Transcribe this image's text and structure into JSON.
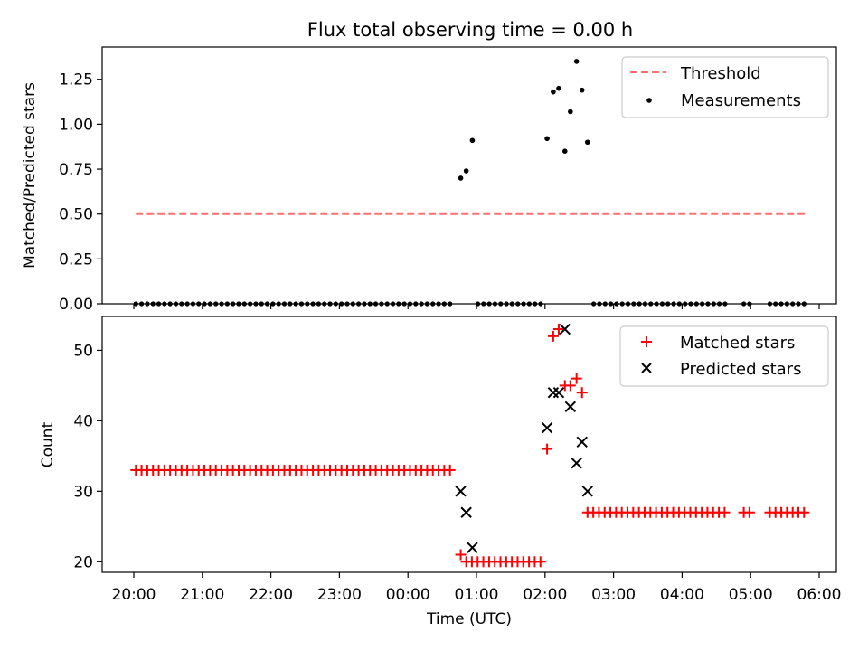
{
  "figure_title": "Flux total observing time = 0.00 h",
  "colors": {
    "threshold": "#ff7070",
    "measurement": "#000000",
    "matched": "#ff0000",
    "predicted": "#000000"
  },
  "chart_data": [
    {
      "type": "scatter",
      "title": "Flux total observing time = 0.00 h",
      "xlabel": "",
      "ylabel": "Matched/Predicted stars",
      "xunits": "hours from 20:00 UTC",
      "xlim": [
        19.57,
        30.27
      ],
      "ylim": [
        0,
        1.43
      ],
      "yticks": [
        "0.00",
        "0.25",
        "0.50",
        "0.75",
        "1.00",
        "1.25"
      ],
      "grid": false,
      "legend": [
        "Threshold",
        "Measurements"
      ],
      "legend_position": "top-right",
      "threshold": {
        "name": "Threshold",
        "x": [
          0.03,
          9.8
        ],
        "y": 0.5
      },
      "measurements": {
        "name": "Measurements",
        "x": [
          4.77,
          4.85,
          4.94,
          6.03,
          6.12,
          6.2,
          6.29,
          6.37,
          6.46,
          6.54,
          6.62
        ],
        "y": [
          0.7,
          0.74,
          0.91,
          0.92,
          1.18,
          1.2,
          0.85,
          1.07,
          1.35,
          1.19,
          0.9
        ]
      },
      "zero_measurements_x_ranges": [
        [
          0.03,
          4.68
        ],
        [
          5.02,
          5.95
        ],
        [
          6.71,
          8.7
        ],
        [
          8.9,
          9.05
        ],
        [
          9.28,
          9.8
        ]
      ]
    },
    {
      "type": "scatter",
      "title": "",
      "xlabel": "Time (UTC)",
      "ylabel": "Count",
      "xlim": [
        -0.43,
        10.27
      ],
      "ylim": [
        18.5,
        54.8
      ],
      "yticks": [
        "20",
        "30",
        "40",
        "50"
      ],
      "xticks": [
        "20:00",
        "21:00",
        "22:00",
        "23:00",
        "00:00",
        "01:00",
        "02:00",
        "03:00",
        "04:00",
        "05:00",
        "06:00"
      ],
      "grid": false,
      "legend": [
        "Matched stars",
        "Predicted stars"
      ],
      "legend_position": "top-right",
      "matched_flat_segments": [
        {
          "x_range": [
            0.03,
            4.68
          ],
          "y": 33
        },
        {
          "x_range": [
            4.85,
            5.95
          ],
          "y": 20
        },
        {
          "x_range": [
            6.62,
            8.7
          ],
          "y": 27
        },
        {
          "x_range": [
            8.9,
            9.05
          ],
          "y": 27
        },
        {
          "x_range": [
            9.28,
            9.8
          ],
          "y": 27
        }
      ],
      "matched_points": {
        "name": "Matched stars",
        "x": [
          4.77,
          6.03,
          6.12,
          6.2,
          6.29,
          6.37,
          6.46,
          6.54
        ],
        "y": [
          21,
          36,
          52,
          53,
          45,
          45,
          46,
          44
        ]
      },
      "predicted_points": {
        "name": "Predicted stars",
        "x": [
          4.77,
          4.85,
          4.94,
          6.03,
          6.12,
          6.2,
          6.29,
          6.37,
          6.46,
          6.54,
          6.62
        ],
        "y": [
          30,
          27,
          22,
          39,
          44,
          44,
          53,
          42,
          34,
          37,
          30
        ]
      }
    }
  ]
}
